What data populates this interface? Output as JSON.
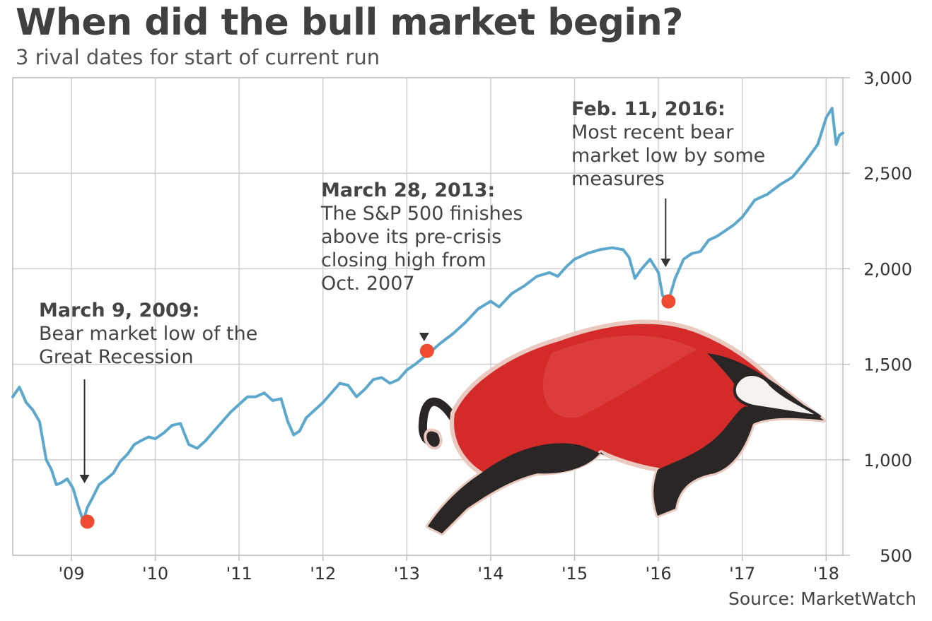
{
  "title": "When did the bull market begin?",
  "subtitle": "3 rival dates for start of current run",
  "source": "Source: MarketWatch",
  "colors": {
    "line": "#5ba8cc",
    "marker": "#ef4b32",
    "grid": "#cfcfcf",
    "bull_body": "#d42a2a",
    "bull_dark": "#2a2626"
  },
  "chart_data": {
    "type": "line",
    "title": "When did the bull market begin?",
    "subtitle": "3 rival dates for start of current run",
    "xlabel": "",
    "ylabel": "",
    "xlim": [
      2008.3,
      2018.2
    ],
    "ylim": [
      500,
      3000
    ],
    "yticks": [
      500,
      1000,
      1500,
      2000,
      2500,
      3000
    ],
    "ytick_labels": [
      "500",
      "1,000",
      "1,500",
      "2,000",
      "2,500",
      "3,000"
    ],
    "xticks": [
      2009,
      2010,
      2011,
      2012,
      2013,
      2014,
      2015,
      2016,
      2017,
      2018
    ],
    "xtick_labels": [
      "'09",
      "'10",
      "'11",
      "'12",
      "'13",
      "'14",
      "'15",
      "'16",
      "'17",
      "'18"
    ],
    "grid": true,
    "y_axis_position": "right",
    "series": [
      {
        "x": [
          2008.3,
          2008.38,
          2008.46,
          2008.54,
          2008.62,
          2008.7,
          2008.76,
          2008.82,
          2008.88,
          2008.95,
          2009.02,
          2009.08,
          2009.14,
          2009.19,
          2009.25,
          2009.33,
          2009.42,
          2009.5,
          2009.58,
          2009.67,
          2009.75,
          2009.83,
          2009.92,
          2010.0,
          2010.1,
          2010.2,
          2010.3,
          2010.4,
          2010.5,
          2010.6,
          2010.7,
          2010.8,
          2010.9,
          2011.0,
          2011.1,
          2011.2,
          2011.3,
          2011.4,
          2011.5,
          2011.58,
          2011.65,
          2011.72,
          2011.8,
          2011.9,
          2012.0,
          2012.1,
          2012.2,
          2012.3,
          2012.4,
          2012.5,
          2012.6,
          2012.7,
          2012.8,
          2012.9,
          2013.0,
          2013.1,
          2013.24,
          2013.4,
          2013.55,
          2013.7,
          2013.85,
          2014.0,
          2014.1,
          2014.25,
          2014.4,
          2014.55,
          2014.7,
          2014.8,
          2014.9,
          2015.0,
          2015.15,
          2015.3,
          2015.45,
          2015.58,
          2015.65,
          2015.72,
          2015.8,
          2015.9,
          2016.0,
          2016.05,
          2016.12,
          2016.2,
          2016.3,
          2016.4,
          2016.5,
          2016.6,
          2016.7,
          2016.8,
          2016.9,
          2017.0,
          2017.15,
          2017.3,
          2017.45,
          2017.6,
          2017.75,
          2017.9,
          2018.0,
          2018.07,
          2018.12,
          2018.16,
          2018.2
        ],
        "values": [
          1330,
          1380,
          1300,
          1260,
          1200,
          1000,
          950,
          870,
          880,
          900,
          850,
          760,
          680,
          750,
          800,
          870,
          900,
          930,
          990,
          1030,
          1080,
          1100,
          1120,
          1110,
          1140,
          1180,
          1190,
          1080,
          1060,
          1100,
          1150,
          1200,
          1250,
          1290,
          1330,
          1330,
          1350,
          1310,
          1320,
          1200,
          1130,
          1150,
          1220,
          1260,
          1300,
          1350,
          1400,
          1390,
          1330,
          1370,
          1420,
          1430,
          1400,
          1420,
          1470,
          1500,
          1550,
          1610,
          1660,
          1720,
          1790,
          1830,
          1800,
          1870,
          1910,
          1960,
          1980,
          1960,
          2010,
          2050,
          2080,
          2100,
          2110,
          2100,
          2060,
          1950,
          2000,
          2050,
          1980,
          1860,
          1830,
          1950,
          2050,
          2080,
          2090,
          2150,
          2170,
          2200,
          2230,
          2270,
          2360,
          2390,
          2440,
          2480,
          2560,
          2650,
          2790,
          2840,
          2650,
          2700,
          2710
        ]
      }
    ],
    "markers": [
      {
        "x": 2009.19,
        "y": 676
      },
      {
        "x": 2013.24,
        "y": 1570
      },
      {
        "x": 2016.12,
        "y": 1829
      }
    ],
    "annotations": [
      {
        "heading": "March 9, 2009:",
        "lines": [
          "Bear market low of the",
          "Great Recession"
        ]
      },
      {
        "heading": "March 28, 2013:",
        "lines": [
          "The S&P 500 finishes",
          "above its pre-crisis",
          "closing high from",
          "Oct. 2007"
        ]
      },
      {
        "heading": "Feb. 11, 2016:",
        "lines": [
          "Most recent bear",
          "market low by some",
          "measures"
        ]
      }
    ]
  }
}
